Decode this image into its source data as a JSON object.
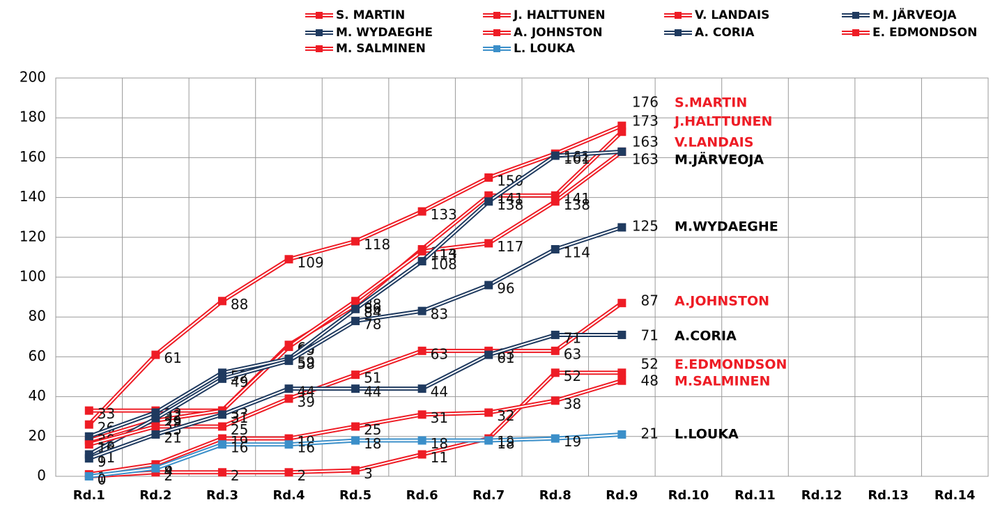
{
  "chart_data": {
    "type": "line",
    "categories": [
      "Rd.1",
      "Rd.2",
      "Rd.3",
      "Rd.4",
      "Rd.5",
      "Rd.6",
      "Rd.7",
      "Rd.8",
      "Rd.9",
      "Rd.10",
      "Rd.11",
      "Rd.12",
      "Rd.13",
      "Rd.14"
    ],
    "ylim": [
      0,
      200
    ],
    "yticks": [
      0,
      20,
      40,
      60,
      80,
      100,
      120,
      140,
      160,
      180,
      200
    ],
    "grid": true,
    "series": [
      {
        "name": "S. MARTIN",
        "end_label": "S.MARTIN",
        "color": "#ee1c25",
        "label_color": "#ee1c25",
        "values": [
          26,
          61,
          88,
          109,
          118,
          133,
          150,
          162,
          176,
          null,
          null,
          null,
          null,
          null
        ]
      },
      {
        "name": "J. HALTTUNEN",
        "end_label": "J.HALTTUNEN",
        "color": "#ee1c25",
        "label_color": "#ee1c25",
        "values": [
          33,
          33,
          33,
          66,
          86,
          114,
          141,
          141,
          173,
          null,
          null,
          null,
          null,
          null
        ]
      },
      {
        "name": "V. LANDAIS",
        "end_label": "V.LANDAIS",
        "color": "#ee1c25",
        "label_color": "#ee1c25",
        "values": [
          18,
          28,
          33,
          65,
          88,
          113,
          117,
          138,
          163,
          null,
          null,
          null,
          null,
          null
        ]
      },
      {
        "name": "M. JÄRVEOJA",
        "end_label": "M.JÄRVEOJA",
        "color": "#1f3a5f",
        "label_color": "#000000",
        "values": [
          20,
          32,
          52,
          59,
          84,
          108,
          138,
          161,
          163,
          null,
          null,
          null,
          null,
          null
        ]
      },
      {
        "name": "M. WYDAEGHE",
        "end_label": "M.WYDAEGHE",
        "color": "#1f3a5f",
        "label_color": "#000000",
        "values": [
          11,
          29,
          49,
          58,
          78,
          83,
          96,
          114,
          125,
          null,
          null,
          null,
          null,
          null
        ]
      },
      {
        "name": "A. JOHNSTON",
        "end_label": "A.JOHNSTON",
        "color": "#ee1c25",
        "label_color": "#ee1c25",
        "values": [
          16,
          25,
          25,
          39,
          51,
          63,
          63,
          63,
          87,
          null,
          null,
          null,
          null,
          null
        ]
      },
      {
        "name": "A. CORIA",
        "end_label": "A.CORIA",
        "color": "#1f3a5f",
        "label_color": "#000000",
        "values": [
          9,
          21,
          31,
          44,
          44,
          44,
          61,
          71,
          71,
          null,
          null,
          null,
          null,
          null
        ]
      },
      {
        "name": "E. EDMONDSON",
        "end_label": "E.EDMONDSON",
        "color": "#ee1c25",
        "label_color": "#ee1c25",
        "values": [
          0,
          2,
          2,
          2,
          3,
          11,
          19,
          52,
          52,
          null,
          null,
          null,
          null,
          null
        ]
      },
      {
        "name": "M. SALMINEN",
        "end_label": "M.SALMINEN",
        "color": "#ee1c25",
        "label_color": "#ee1c25",
        "values": [
          1,
          6,
          19,
          19,
          25,
          31,
          32,
          38,
          48,
          null,
          null,
          null,
          null,
          null
        ]
      },
      {
        "name": "L. LOUKA",
        "end_label": "L.LOUKA",
        "color": "#3b8fc9",
        "label_color": "#000000",
        "values": [
          0,
          4,
          16,
          16,
          18,
          18,
          18,
          19,
          21,
          null,
          null,
          null,
          null,
          null
        ]
      }
    ]
  }
}
